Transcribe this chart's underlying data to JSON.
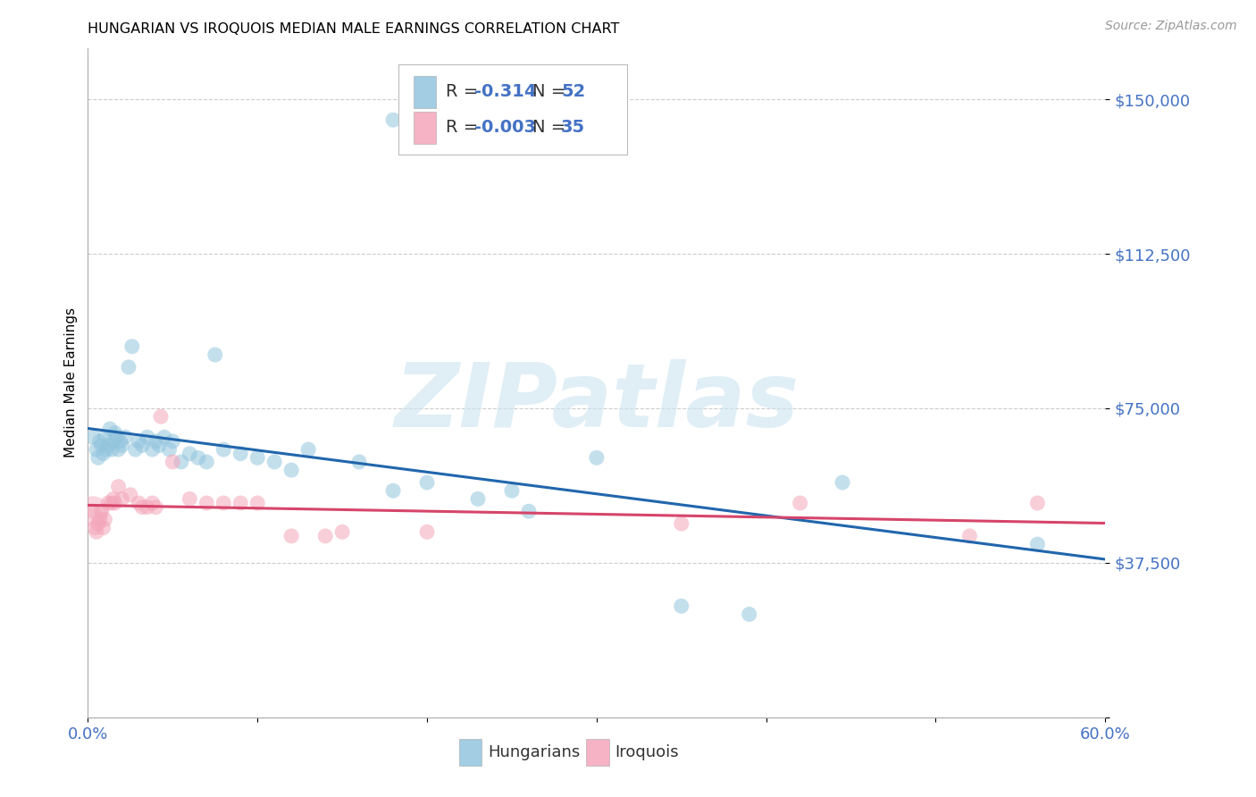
{
  "title": "HUNGARIAN VS IROQUOIS MEDIAN MALE EARNINGS CORRELATION CHART",
  "source": "Source: ZipAtlas.com",
  "ylabel": "Median Male Earnings",
  "yticks": [
    0,
    37500,
    75000,
    112500,
    150000
  ],
  "ytick_labels": [
    "",
    "$37,500",
    "$75,000",
    "$112,500",
    "$150,000"
  ],
  "xlim": [
    0.0,
    0.6
  ],
  "ylim": [
    0,
    162500
  ],
  "watermark": "ZIPatlas",
  "blue_color": "#92c5de",
  "blue_line_color": "#2166ac",
  "pink_color": "#f4a6bb",
  "pink_line_color": "#d6456b",
  "axis_label_color": "#4472c4",
  "text_color": "#333333",
  "blue_scatter": [
    [
      0.003,
      68000
    ],
    [
      0.005,
      65000
    ],
    [
      0.006,
      63000
    ],
    [
      0.007,
      67000
    ],
    [
      0.008,
      66000
    ],
    [
      0.009,
      64000
    ],
    [
      0.01,
      68000
    ],
    [
      0.011,
      65000
    ],
    [
      0.012,
      66000
    ],
    [
      0.013,
      70000
    ],
    [
      0.014,
      65000
    ],
    [
      0.015,
      67000
    ],
    [
      0.016,
      69000
    ],
    [
      0.017,
      68000
    ],
    [
      0.018,
      65000
    ],
    [
      0.019,
      67000
    ],
    [
      0.02,
      66000
    ],
    [
      0.022,
      68000
    ],
    [
      0.024,
      85000
    ],
    [
      0.026,
      90000
    ],
    [
      0.028,
      65000
    ],
    [
      0.03,
      67000
    ],
    [
      0.032,
      66000
    ],
    [
      0.035,
      68000
    ],
    [
      0.038,
      65000
    ],
    [
      0.04,
      67000
    ],
    [
      0.042,
      66000
    ],
    [
      0.045,
      68000
    ],
    [
      0.048,
      65000
    ],
    [
      0.05,
      67000
    ],
    [
      0.055,
      62000
    ],
    [
      0.06,
      64000
    ],
    [
      0.065,
      63000
    ],
    [
      0.07,
      62000
    ],
    [
      0.075,
      88000
    ],
    [
      0.08,
      65000
    ],
    [
      0.09,
      64000
    ],
    [
      0.1,
      63000
    ],
    [
      0.11,
      62000
    ],
    [
      0.12,
      60000
    ],
    [
      0.13,
      65000
    ],
    [
      0.16,
      62000
    ],
    [
      0.18,
      55000
    ],
    [
      0.2,
      57000
    ],
    [
      0.23,
      53000
    ],
    [
      0.25,
      55000
    ],
    [
      0.26,
      50000
    ],
    [
      0.3,
      63000
    ],
    [
      0.35,
      27000
    ],
    [
      0.39,
      25000
    ],
    [
      0.445,
      57000
    ],
    [
      0.56,
      42000
    ],
    [
      0.18,
      145000
    ]
  ],
  "pink_scatter": [
    [
      0.003,
      50000
    ],
    [
      0.004,
      46000
    ],
    [
      0.005,
      45000
    ],
    [
      0.006,
      47000
    ],
    [
      0.007,
      48000
    ],
    [
      0.008,
      50000
    ],
    [
      0.009,
      46000
    ],
    [
      0.01,
      48000
    ],
    [
      0.012,
      52000
    ],
    [
      0.014,
      52000
    ],
    [
      0.015,
      53000
    ],
    [
      0.016,
      52000
    ],
    [
      0.018,
      56000
    ],
    [
      0.02,
      53000
    ],
    [
      0.025,
      54000
    ],
    [
      0.03,
      52000
    ],
    [
      0.032,
      51000
    ],
    [
      0.035,
      51000
    ],
    [
      0.038,
      52000
    ],
    [
      0.04,
      51000
    ],
    [
      0.043,
      73000
    ],
    [
      0.05,
      62000
    ],
    [
      0.06,
      53000
    ],
    [
      0.07,
      52000
    ],
    [
      0.08,
      52000
    ],
    [
      0.09,
      52000
    ],
    [
      0.1,
      52000
    ],
    [
      0.12,
      44000
    ],
    [
      0.14,
      44000
    ],
    [
      0.15,
      45000
    ],
    [
      0.2,
      45000
    ],
    [
      0.35,
      47000
    ],
    [
      0.42,
      52000
    ],
    [
      0.52,
      44000
    ],
    [
      0.56,
      52000
    ]
  ]
}
